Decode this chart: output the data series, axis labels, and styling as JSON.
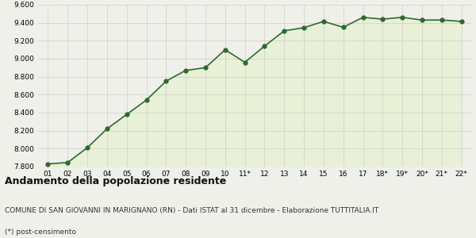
{
  "x_labels": [
    "01",
    "02",
    "03",
    "04",
    "05",
    "06",
    "07",
    "08",
    "09",
    "10",
    "11*",
    "12",
    "13",
    "14",
    "15",
    "16",
    "17",
    "18*",
    "19*",
    "20*",
    "21*",
    "22*"
  ],
  "y_values": [
    7830,
    7845,
    8010,
    8220,
    8380,
    8540,
    8750,
    8870,
    8900,
    9100,
    8960,
    9140,
    9310,
    9345,
    9415,
    9350,
    9460,
    9440,
    9460,
    9430,
    9430,
    9415
  ],
  "line_color": "#2d6a2d",
  "fill_color": "#e8f0d8",
  "marker_color": "#2d6a2d",
  "bg_color": "#f0f0eb",
  "grid_color": "#d0d0c8",
  "ylim": [
    7800,
    9600
  ],
  "yticks": [
    7800,
    8000,
    8200,
    8400,
    8600,
    8800,
    9000,
    9200,
    9400,
    9600
  ],
  "title": "Andamento della popolazione residente",
  "subtitle": "COMUNE DI SAN GIOVANNI IN MARIGNANO (RN) - Dati ISTAT al 31 dicembre - Elaborazione TUTTITALIA.IT",
  "footnote": "(*) post-censimento",
  "title_fontsize": 9,
  "subtitle_fontsize": 6.5,
  "footnote_fontsize": 6.5,
  "tick_fontsize": 6.5
}
